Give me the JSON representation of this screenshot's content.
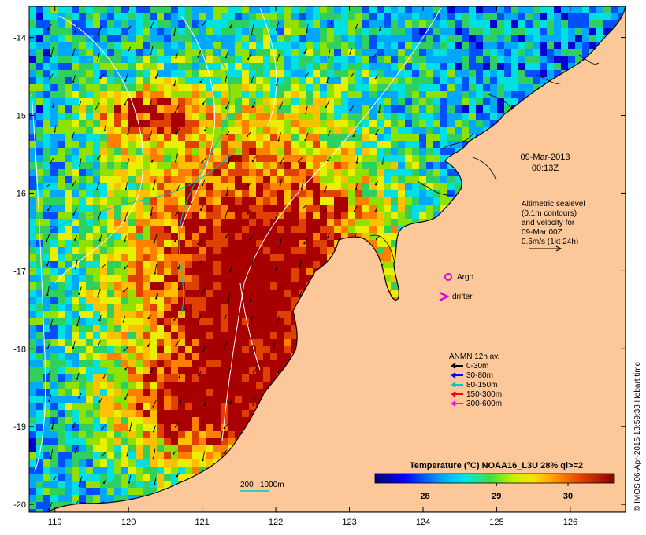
{
  "map": {
    "lon_ticks": [
      "119",
      "120",
      "121",
      "122",
      "123",
      "124",
      "125",
      "126"
    ],
    "lat_ticks": [
      "-14",
      "-15",
      "-16",
      "-17",
      "-18",
      "-19",
      "-20"
    ],
    "lon_range": [
      118.65,
      126.75
    ],
    "lat_range": [
      -20.1,
      -13.6
    ],
    "date_line": "09-Mar-2013",
    "time_line": "00:13Z",
    "altimetry_lines": [
      "Altimetric sealevel",
      "(0.1m contours)",
      "and velocity for",
      "09-Mar 00Z",
      "0.5m/s (1kt 24h)"
    ],
    "argo_label": "Argo",
    "drifter_label": "drifter",
    "anmn_title": "ANMN 12h av.",
    "anmn_legend": [
      {
        "label": "0-30m",
        "color": "#000000"
      },
      {
        "label": "30-80m",
        "color": "#0000ff"
      },
      {
        "label": "80-150m",
        "color": "#00c8c8"
      },
      {
        "label": "150-300m",
        "color": "#ff0000"
      },
      {
        "label": "300-600m",
        "color": "#ff00ff"
      }
    ],
    "depth_legend": {
      "a": "200",
      "b": "1000m"
    },
    "colorbar_title": "Temperature (°C) NOAA16_L3U 28% ql>=2",
    "colorbar_ticks": [
      "28",
      "29",
      "30"
    ],
    "colorbar_range": [
      27.3,
      30.65
    ],
    "credit": "© IMOS 06-Apr-2015 13:59:33 Hobart time",
    "colors": {
      "land": "#fcc89a",
      "marker": "#e000e0",
      "contour": "#ffffff",
      "depth_contour": "#00c8c8"
    }
  }
}
